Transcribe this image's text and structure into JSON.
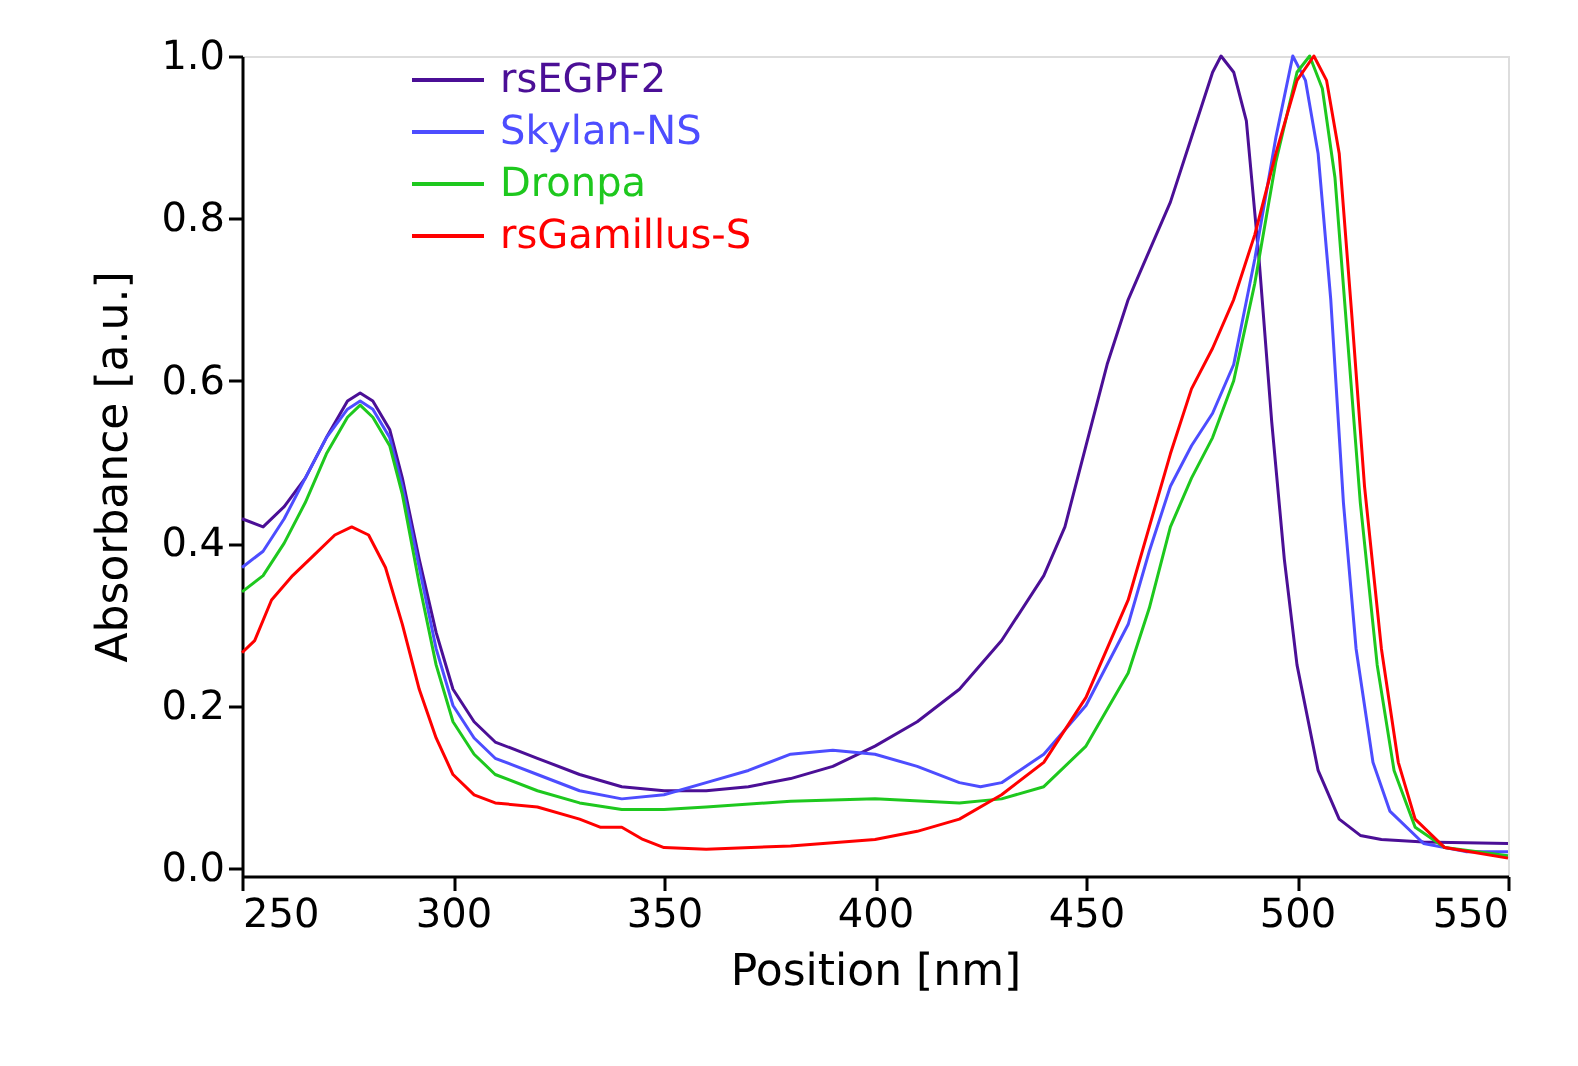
{
  "chart_data": {
    "type": "line",
    "xlabel": "Position [nm]",
    "ylabel": "Absorbance [a.u.]",
    "xlim": [
      250,
      550
    ],
    "xticks": [
      250,
      300,
      350,
      400,
      450,
      500,
      550
    ],
    "ylim": [
      -0.01,
      1.0
    ],
    "yticks": [
      {
        "value": 0,
        "label": "0.0"
      },
      {
        "value": 0.2,
        "label": "0.2"
      },
      {
        "value": 0.4,
        "label": "0.4"
      },
      {
        "value": 0.6,
        "label": "0.6"
      },
      {
        "value": 0.8,
        "label": "0.8"
      },
      {
        "value": 1.0,
        "label": "1.0"
      }
    ],
    "grid": false,
    "legend": "top left",
    "marker": "none",
    "line_style": "solid",
    "series": [
      {
        "name": "rsEGPF2",
        "color": "#4b0f96",
        "x": [
          250,
          255,
          260,
          265,
          270,
          275,
          278,
          281,
          285,
          288,
          292,
          296,
          300,
          305,
          310,
          320,
          330,
          340,
          350,
          360,
          370,
          380,
          390,
          400,
          410,
          420,
          430,
          440,
          445,
          450,
          455,
          460,
          465,
          470,
          475,
          480,
          482,
          485,
          488,
          491,
          494,
          497,
          500,
          505,
          510,
          515,
          520,
          530,
          550
        ],
        "values": [
          0.43,
          0.42,
          0.445,
          0.48,
          0.53,
          0.575,
          0.585,
          0.575,
          0.54,
          0.48,
          0.38,
          0.29,
          0.22,
          0.18,
          0.155,
          0.135,
          0.115,
          0.1,
          0.095,
          0.095,
          0.1,
          0.11,
          0.125,
          0.15,
          0.18,
          0.22,
          0.28,
          0.36,
          0.42,
          0.52,
          0.62,
          0.7,
          0.76,
          0.82,
          0.9,
          0.98,
          1.0,
          0.98,
          0.92,
          0.75,
          0.55,
          0.38,
          0.25,
          0.12,
          0.06,
          0.04,
          0.035,
          0.032,
          0.03
        ]
      },
      {
        "name": "Skylan-NS",
        "color": "#4d4dff",
        "x": [
          250,
          255,
          260,
          265,
          270,
          275,
          278,
          281,
          285,
          288,
          292,
          296,
          300,
          305,
          310,
          320,
          330,
          340,
          350,
          360,
          370,
          380,
          390,
          400,
          410,
          420,
          425,
          430,
          440,
          450,
          460,
          465,
          470,
          475,
          480,
          485,
          490,
          495,
          499,
          502,
          505,
          508,
          511,
          514,
          518,
          522,
          530,
          540,
          550
        ],
        "values": [
          0.37,
          0.39,
          0.43,
          0.48,
          0.53,
          0.565,
          0.575,
          0.565,
          0.53,
          0.47,
          0.37,
          0.27,
          0.2,
          0.16,
          0.135,
          0.115,
          0.095,
          0.085,
          0.09,
          0.105,
          0.12,
          0.14,
          0.145,
          0.14,
          0.125,
          0.105,
          0.1,
          0.105,
          0.14,
          0.2,
          0.3,
          0.39,
          0.47,
          0.52,
          0.56,
          0.62,
          0.75,
          0.9,
          1.0,
          0.97,
          0.88,
          0.7,
          0.45,
          0.27,
          0.13,
          0.07,
          0.03,
          0.02,
          0.02
        ]
      },
      {
        "name": "Dronpa",
        "color": "#1ec81e",
        "x": [
          250,
          255,
          260,
          265,
          270,
          275,
          278,
          281,
          285,
          288,
          292,
          296,
          300,
          305,
          310,
          320,
          330,
          340,
          350,
          360,
          380,
          400,
          420,
          430,
          440,
          450,
          460,
          465,
          470,
          475,
          480,
          485,
          490,
          495,
          500,
          503,
          506,
          509,
          512,
          515,
          519,
          523,
          528,
          535,
          550
        ],
        "values": [
          0.34,
          0.36,
          0.4,
          0.45,
          0.51,
          0.555,
          0.57,
          0.555,
          0.52,
          0.46,
          0.35,
          0.25,
          0.18,
          0.14,
          0.115,
          0.095,
          0.08,
          0.072,
          0.072,
          0.075,
          0.082,
          0.085,
          0.08,
          0.085,
          0.1,
          0.15,
          0.24,
          0.32,
          0.42,
          0.48,
          0.53,
          0.6,
          0.72,
          0.87,
          0.98,
          1.0,
          0.96,
          0.85,
          0.65,
          0.45,
          0.25,
          0.12,
          0.05,
          0.025,
          0.015
        ]
      },
      {
        "name": "rsGamillus-S",
        "color": "#ff0000",
        "x": [
          250,
          253,
          257,
          262,
          267,
          272,
          276,
          280,
          284,
          288,
          292,
          296,
          300,
          305,
          310,
          320,
          330,
          335,
          340,
          345,
          350,
          360,
          380,
          400,
          410,
          420,
          430,
          440,
          450,
          460,
          465,
          470,
          475,
          480,
          485,
          490,
          495,
          500,
          504,
          507,
          510,
          513,
          516,
          520,
          524,
          528,
          535,
          550
        ],
        "values": [
          0.265,
          0.28,
          0.33,
          0.36,
          0.385,
          0.41,
          0.42,
          0.41,
          0.37,
          0.3,
          0.22,
          0.16,
          0.115,
          0.09,
          0.08,
          0.075,
          0.06,
          0.05,
          0.05,
          0.035,
          0.025,
          0.023,
          0.027,
          0.035,
          0.045,
          0.06,
          0.09,
          0.13,
          0.21,
          0.33,
          0.42,
          0.51,
          0.59,
          0.64,
          0.7,
          0.78,
          0.88,
          0.97,
          1.0,
          0.97,
          0.88,
          0.68,
          0.47,
          0.27,
          0.13,
          0.06,
          0.025,
          0.012
        ]
      }
    ]
  }
}
